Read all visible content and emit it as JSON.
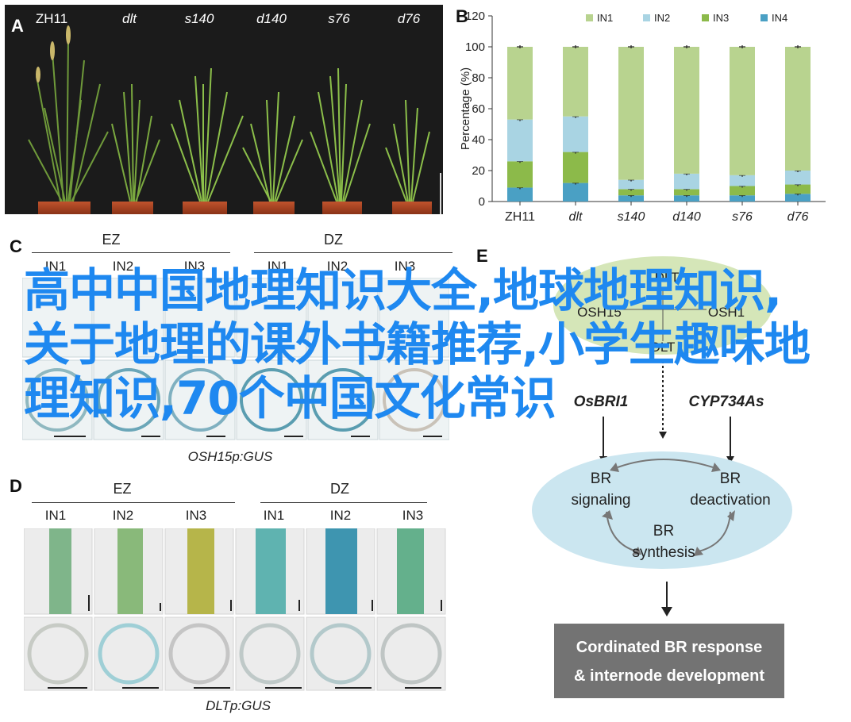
{
  "panels": {
    "a": {
      "letter": "A",
      "genotypes": [
        "ZH11",
        "dlt",
        "s140",
        "d140",
        "s76",
        "d76"
      ]
    },
    "b": {
      "letter": "B"
    },
    "c": {
      "letter": "C",
      "groups": [
        "EZ",
        "DZ"
      ],
      "internodes": [
        "IN1",
        "IN2",
        "IN3"
      ],
      "caption": "OSH15p:GUS"
    },
    "d": {
      "letter": "D",
      "groups": [
        "EZ",
        "DZ"
      ],
      "internodes": [
        "IN1",
        "IN2",
        "IN3"
      ],
      "caption": "DLTp:GUS"
    },
    "e": {
      "letter": "E",
      "top_nodes": [
        "DLT",
        "OSH15",
        "OSH1"
      ],
      "middle": {
        "left": "OsBRI1",
        "right": "CYP734As"
      },
      "cycle": {
        "signaling": "BR\nsignaling",
        "deactivation": "BR\ndeactivation",
        "synthesis": "BR\nsynthesis"
      },
      "result": "Cordinated BR response\n& internode development"
    }
  },
  "overlay": {
    "text": "高中中国地理知识大全,地球地理知识,关于地理的课外书籍推荐,小学生趣味地理知识,70个中国文化常识"
  },
  "chart_data": {
    "type": "bar",
    "stacked": true,
    "categories": [
      "ZH11",
      "dlt",
      "s140",
      "d140",
      "s76",
      "d76"
    ],
    "series": [
      {
        "name": "IN1",
        "values": [
          47,
          45,
          86,
          82,
          83,
          80
        ],
        "color": "#b8d38f"
      },
      {
        "name": "IN2",
        "values": [
          27,
          23,
          6,
          10,
          7,
          9
        ],
        "color": "#a9d4e3"
      },
      {
        "name": "IN3",
        "values": [
          17,
          20,
          4,
          4,
          6,
          6
        ],
        "color": "#8cba4a"
      },
      {
        "name": "IN4",
        "values": [
          9,
          12,
          4,
          4,
          4,
          5
        ],
        "color": "#4aa0c4"
      }
    ],
    "ylabel": "Percentage (%)",
    "ylim": [
      0,
      120
    ],
    "yticks": [
      0,
      20,
      40,
      60,
      80,
      100,
      120
    ],
    "legend_position": "top"
  }
}
